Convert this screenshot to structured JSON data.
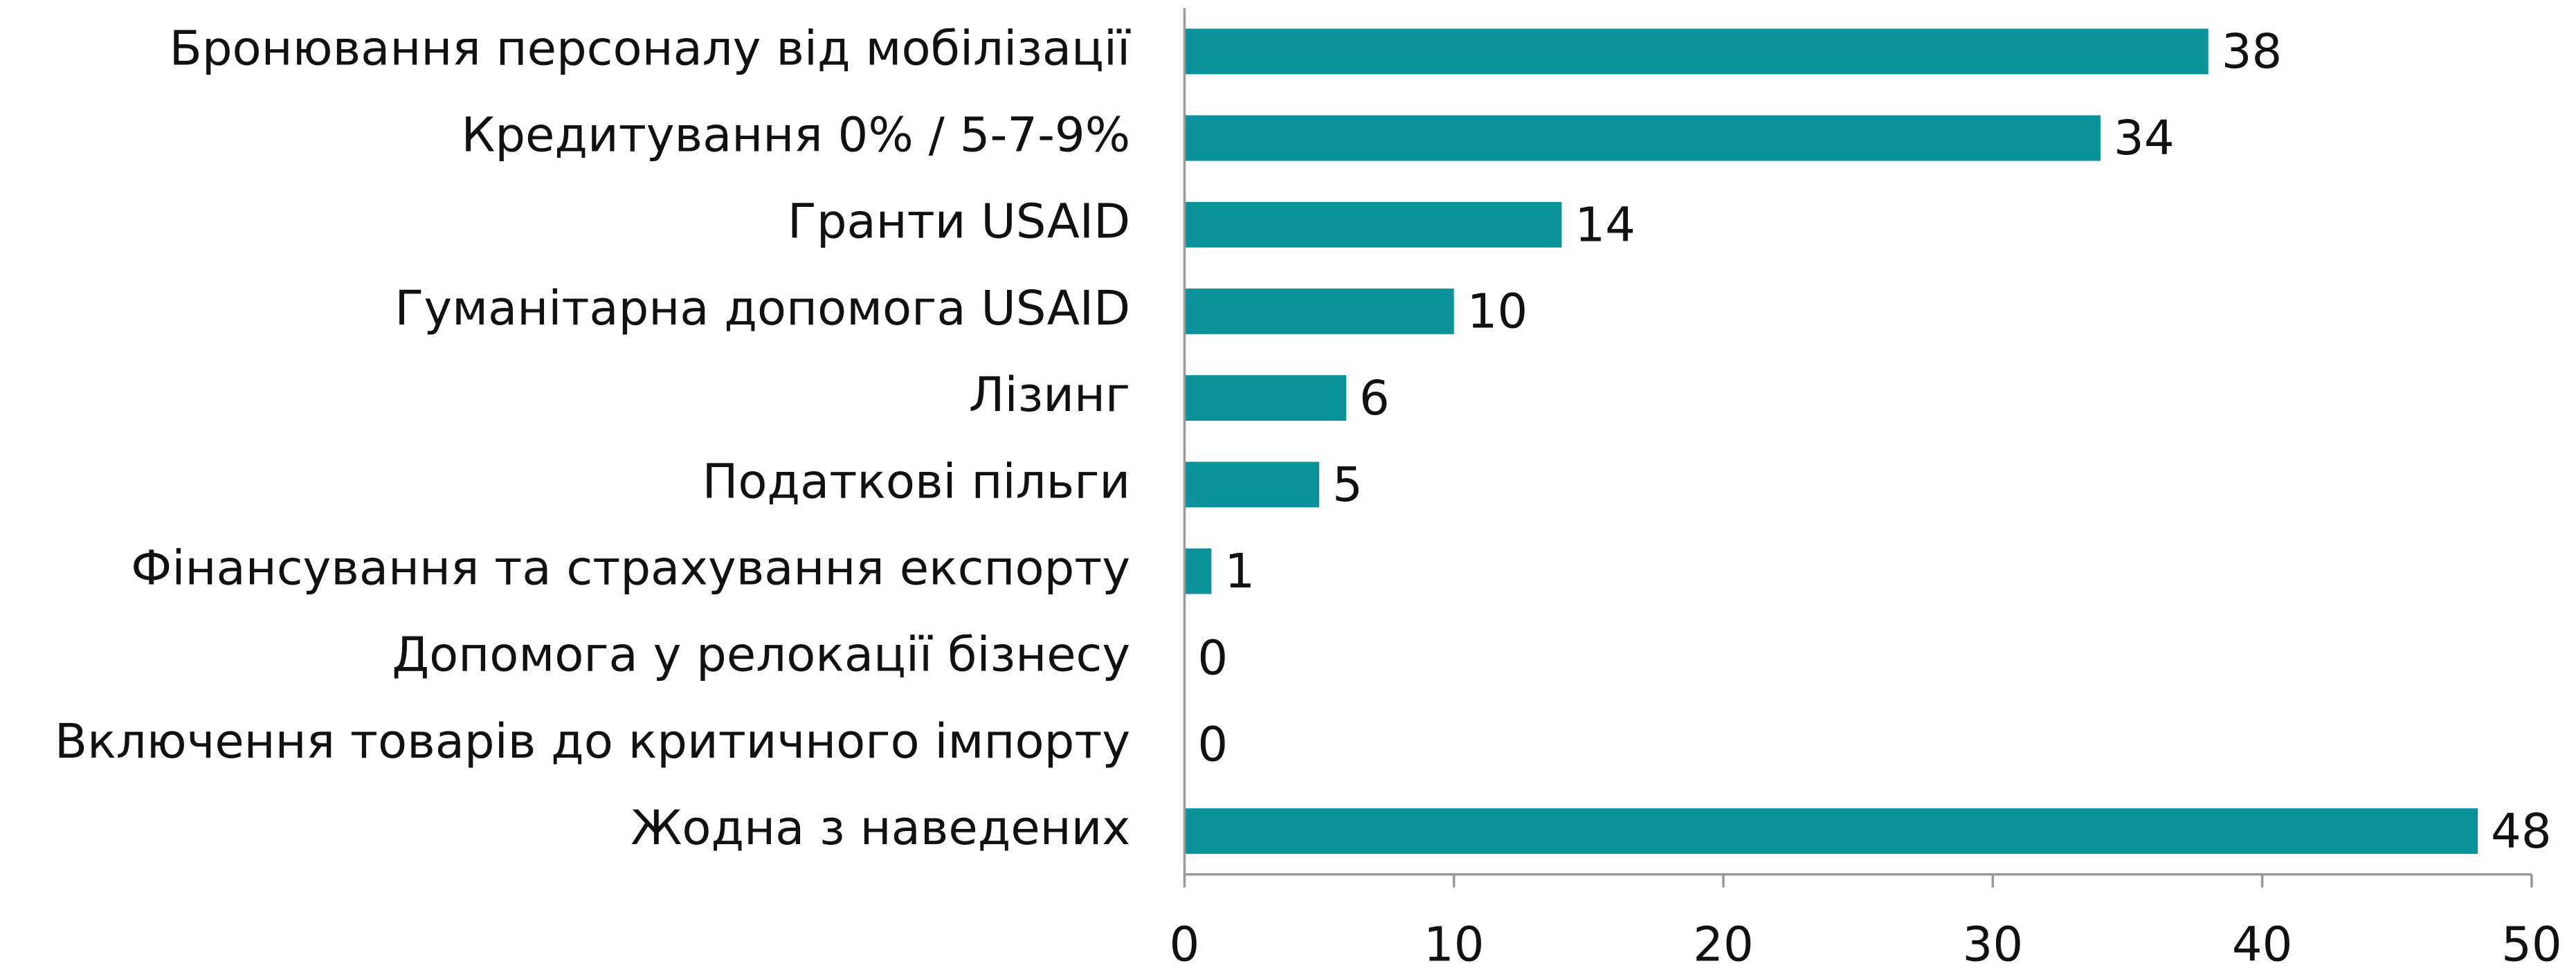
{
  "chart_data": {
    "type": "hbar",
    "categories": [
      "Бронювання персоналу від мобілізації",
      "Кредитування 0% / 5-7-9%",
      "Гранти USAID",
      "Гуманітарна допомога USAID",
      "Лізинг",
      "Податкові пільги",
      "Фінансування та страхування експорту",
      "Допомога у релокації бізнесу",
      "Включення товарів до критичного імпорту",
      "Жодна з наведених"
    ],
    "values": [
      38,
      34,
      14,
      10,
      6,
      5,
      1,
      0,
      0,
      48
    ],
    "color": "#0b939b",
    "xlim": [
      0,
      50
    ],
    "xticks": [
      0,
      10,
      20,
      30,
      40,
      50
    ]
  }
}
